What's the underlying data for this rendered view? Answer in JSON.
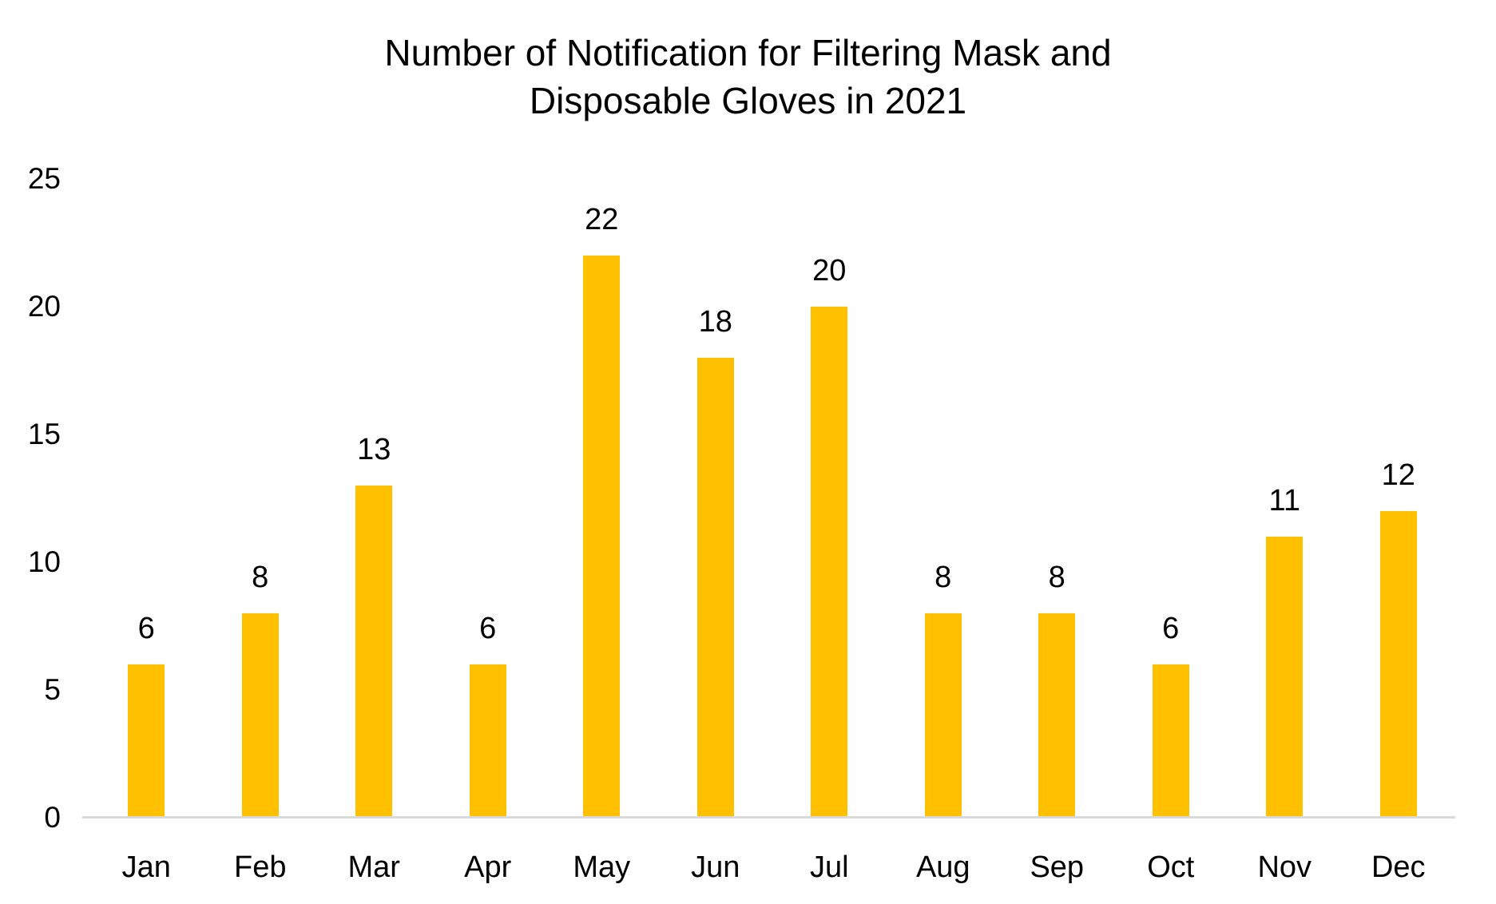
{
  "chart_data": {
    "type": "bar",
    "title": "Number of Notification for Filtering Mask and Disposable Gloves in 2021",
    "title_lines": [
      "Number of Notification for Filtering Mask and",
      "Disposable Gloves in 2021"
    ],
    "categories": [
      "Jan",
      "Feb",
      "Mar",
      "Apr",
      "May",
      "Jun",
      "Jul",
      "Aug",
      "Sep",
      "Oct",
      "Nov",
      "Dec"
    ],
    "values": [
      6,
      8,
      13,
      6,
      22,
      18,
      20,
      8,
      8,
      6,
      11,
      12
    ],
    "data_labels": [
      6,
      8,
      13,
      6,
      22,
      18,
      20,
      8,
      8,
      6,
      11,
      12
    ],
    "xlabel": "",
    "ylabel": "",
    "yticks": [
      0,
      5,
      10,
      15,
      20,
      25
    ],
    "ylim": [
      0,
      25
    ],
    "grid": false,
    "legend": false,
    "colors": {
      "bar": "#FFC000",
      "axis_line": "#D9D9D9",
      "text": "#000000",
      "background": "#FFFFFF"
    }
  }
}
